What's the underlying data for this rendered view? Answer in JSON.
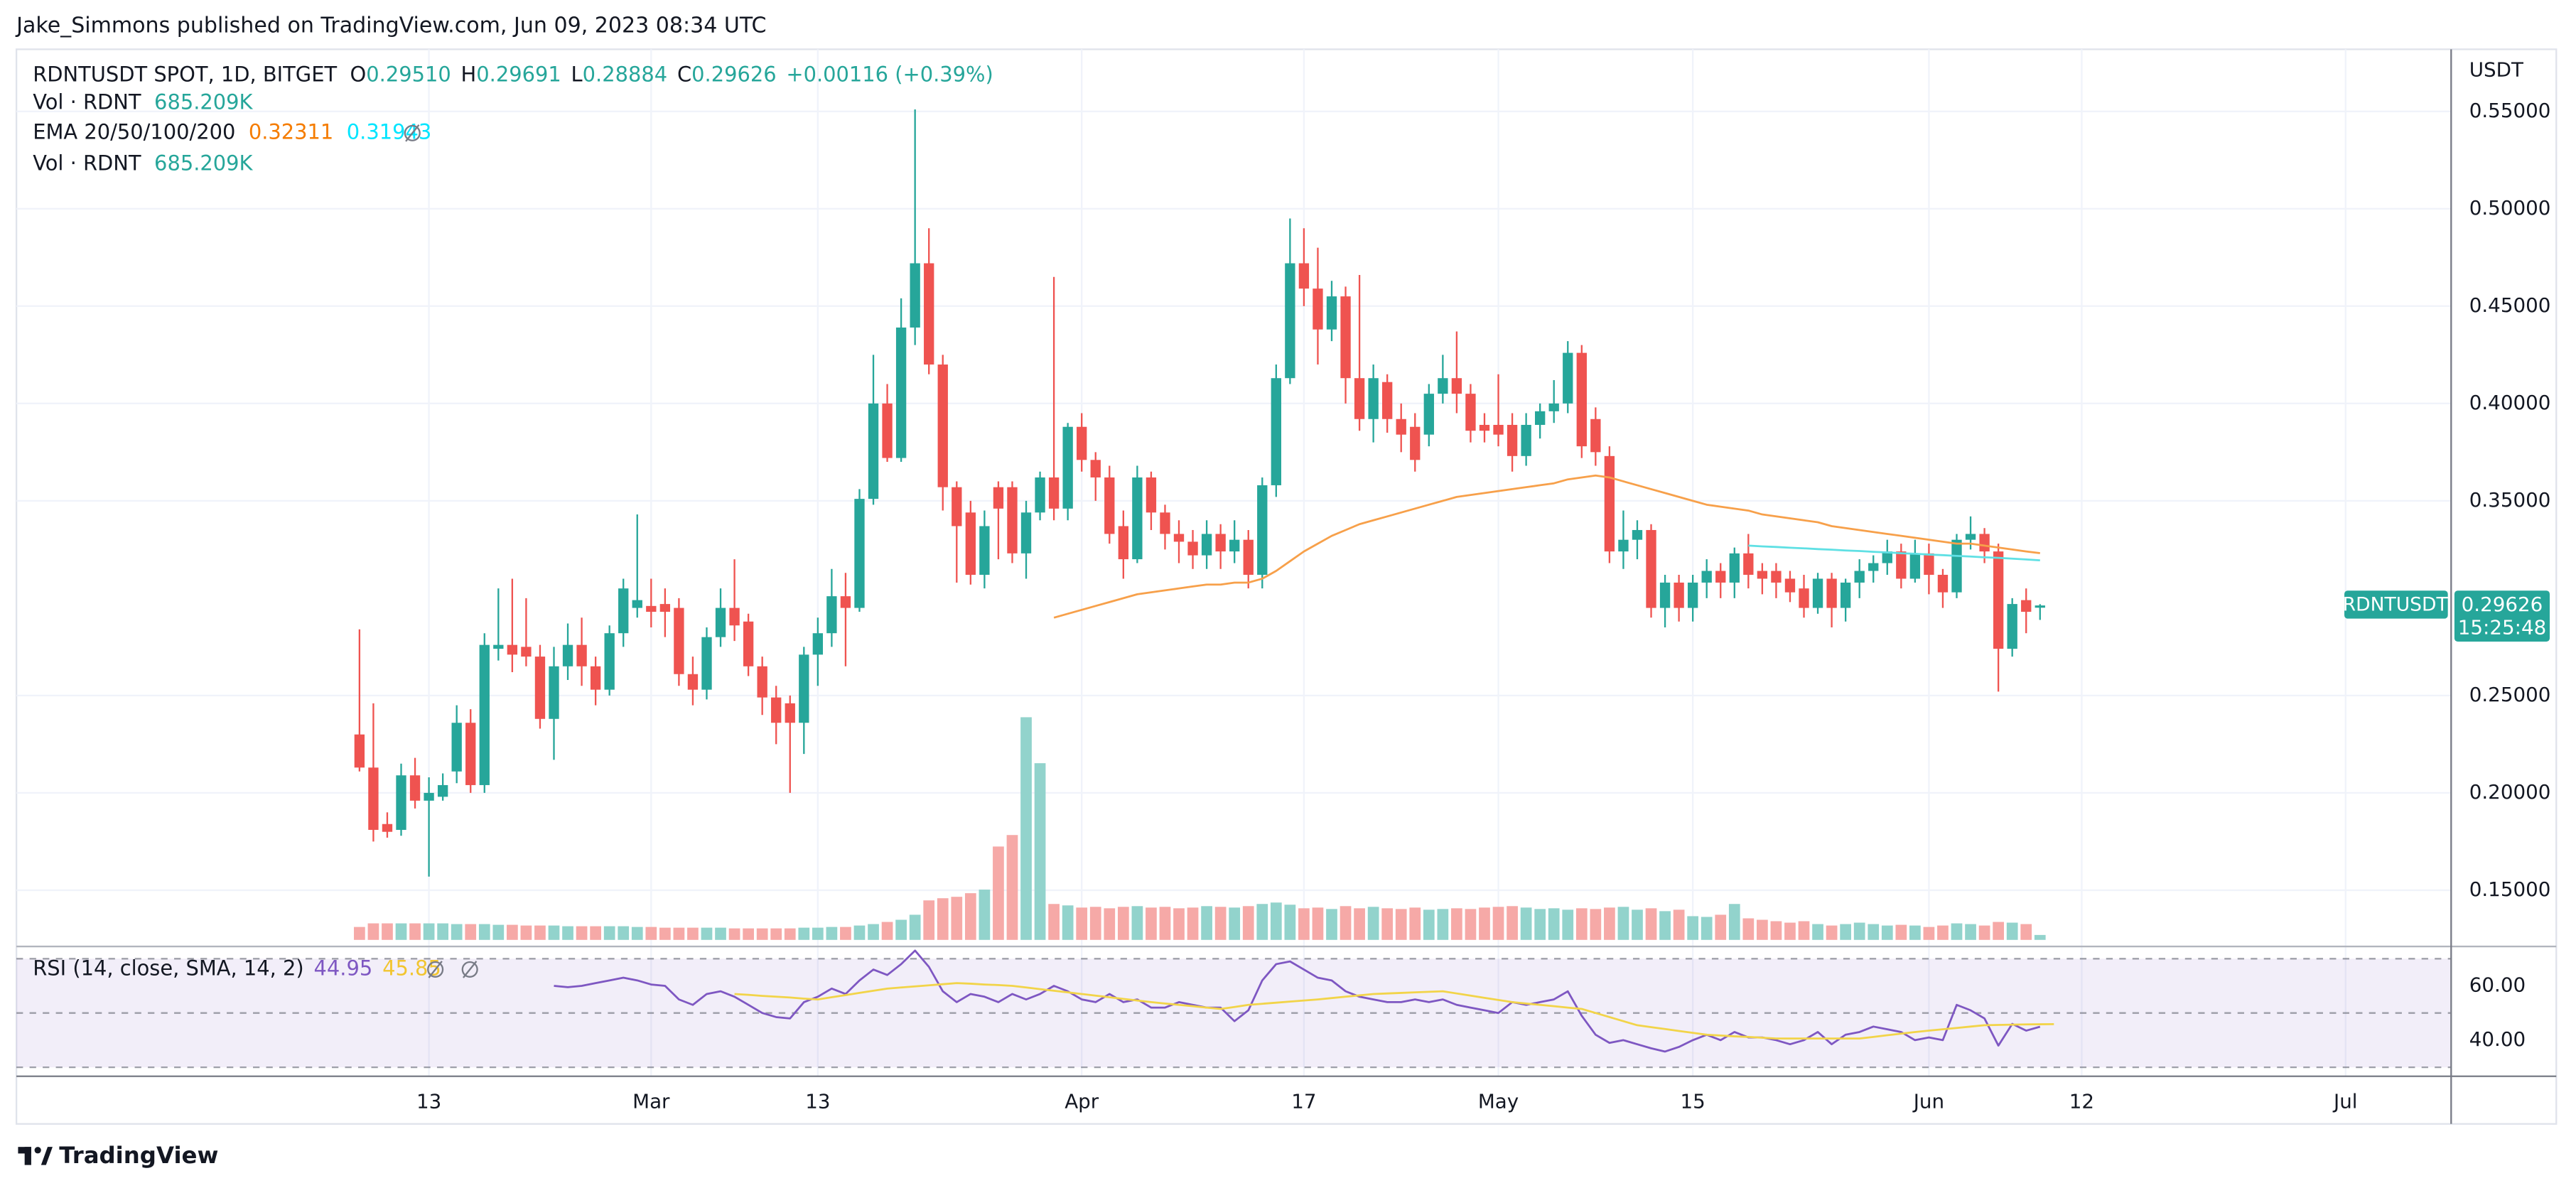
{
  "chart_data": {
    "type": "candlestick",
    "publisher": "Jake_Simmons published on TradingView.com, Jun 09, 2023 08:34 UTC",
    "title": "RDNTUSDT SPOT, 1D, BITGET",
    "legend_letters": [
      "O",
      "H",
      "L",
      "C"
    ],
    "open_label": "0.29510",
    "change": "+0.00116 (+0.39%)",
    "volume_title": "Vol · RDNT",
    "last_volume_label": "685.209K",
    "ema_title": "EMA 20/50/100/200",
    "currency": "USDT",
    "symbol": "RDNTUSDT",
    "countdown": "15:25:48",
    "brand": "TradingView",
    "grid": true,
    "colors": {
      "up": "#26a69a",
      "down": "#ef5350",
      "volume_up": "#92d3cc",
      "volume_down": "#f6a9a7"
    },
    "xlim": [
      -24.7,
      150.6
    ],
    "xticks": [
      {
        "value": 5,
        "label": "13"
      },
      {
        "value": 21,
        "label": "Mar"
      },
      {
        "value": 33,
        "label": "13"
      },
      {
        "value": 52,
        "label": "Apr"
      },
      {
        "value": 68,
        "label": "17"
      },
      {
        "value": 82,
        "label": "May"
      },
      {
        "value": 96,
        "label": "15"
      },
      {
        "value": 113,
        "label": "Jun"
      },
      {
        "value": 124,
        "label": "12"
      },
      {
        "value": 143,
        "label": "Jul"
      }
    ],
    "ylim": [
      0.1245,
      0.5819
    ],
    "yticks": [
      {
        "value": 0.15,
        "label": "0.15000"
      },
      {
        "value": 0.2,
        "label": "0.20000"
      },
      {
        "value": 0.25,
        "label": "0.25000"
      },
      {
        "value": 0.35,
        "label": "0.35000"
      },
      {
        "value": 0.4,
        "label": "0.40000"
      },
      {
        "value": 0.45,
        "label": "0.45000"
      },
      {
        "value": 0.5,
        "label": "0.50000"
      },
      {
        "value": 0.55,
        "label": "0.55000"
      }
    ],
    "y2lim": [
      0,
      124000
    ],
    "open": [
      0.23,
      0.213,
      0.184,
      0.181,
      0.209,
      0.196,
      0.198,
      0.211,
      0.236,
      0.204,
      0.274,
      0.276,
      0.275,
      0.27,
      0.238,
      0.265,
      0.276,
      0.265,
      0.253,
      0.282,
      0.295,
      0.296,
      0.297,
      0.295,
      0.261,
      0.253,
      0.28,
      0.295,
      0.288,
      0.265,
      0.249,
      0.246,
      0.236,
      0.271,
      0.282,
      0.301,
      0.295,
      0.351,
      0.4,
      0.372,
      0.439,
      0.472,
      0.42,
      0.357,
      0.344,
      0.312,
      0.357,
      0.357,
      0.323,
      0.344,
      0.362,
      0.346,
      0.388,
      0.371,
      0.362,
      0.337,
      0.32,
      0.362,
      0.344,
      0.333,
      0.329,
      0.322,
      0.333,
      0.324,
      0.33,
      0.312,
      0.358,
      0.413,
      0.472,
      0.459,
      0.438,
      0.455,
      0.413,
      0.392,
      0.411,
      0.392,
      0.388,
      0.384,
      0.405,
      0.413,
      0.405,
      0.389,
      0.389,
      0.389,
      0.373,
      0.389,
      0.396,
      0.4,
      0.426,
      0.392,
      0.373,
      0.324,
      0.33,
      0.335,
      0.295,
      0.308,
      0.295,
      0.308,
      0.314,
      0.308,
      0.323,
      0.314,
      0.314,
      0.31,
      0.305,
      0.295,
      0.31,
      0.295,
      0.308,
      0.314,
      0.318,
      0.324,
      0.31,
      0.323,
      0.312,
      0.303,
      0.33,
      0.333,
      0.324,
      0.274,
      0.299,
      0.2951
    ],
    "high": [
      0.284,
      0.246,
      0.19,
      0.215,
      0.218,
      0.208,
      0.21,
      0.245,
      0.243,
      0.282,
      0.305,
      0.31,
      0.3,
      0.276,
      0.275,
      0.287,
      0.29,
      0.27,
      0.286,
      0.31,
      0.343,
      0.31,
      0.305,
      0.3,
      0.27,
      0.285,
      0.305,
      0.32,
      0.292,
      0.27,
      0.255,
      0.25,
      0.275,
      0.29,
      0.315,
      0.313,
      0.356,
      0.425,
      0.41,
      0.454,
      0.551,
      0.49,
      0.425,
      0.36,
      0.35,
      0.345,
      0.36,
      0.36,
      0.35,
      0.365,
      0.465,
      0.39,
      0.395,
      0.375,
      0.368,
      0.345,
      0.368,
      0.365,
      0.348,
      0.34,
      0.335,
      0.34,
      0.338,
      0.34,
      0.335,
      0.362,
      0.42,
      0.495,
      0.49,
      0.48,
      0.463,
      0.46,
      0.466,
      0.42,
      0.415,
      0.4,
      0.395,
      0.41,
      0.425,
      0.437,
      0.41,
      0.395,
      0.415,
      0.395,
      0.395,
      0.4,
      0.412,
      0.432,
      0.43,
      0.398,
      0.378,
      0.345,
      0.34,
      0.338,
      0.312,
      0.312,
      0.312,
      0.32,
      0.318,
      0.326,
      0.333,
      0.318,
      0.318,
      0.314,
      0.312,
      0.313,
      0.313,
      0.31,
      0.32,
      0.322,
      0.33,
      0.328,
      0.33,
      0.328,
      0.315,
      0.333,
      0.342,
      0.336,
      0.328,
      0.3,
      0.305,
      0.29691
    ],
    "low": [
      0.211,
      0.175,
      0.177,
      0.178,
      0.192,
      0.157,
      0.196,
      0.205,
      0.2,
      0.2,
      0.268,
      0.262,
      0.265,
      0.233,
      0.217,
      0.258,
      0.255,
      0.245,
      0.25,
      0.275,
      0.29,
      0.285,
      0.28,
      0.255,
      0.245,
      0.248,
      0.275,
      0.278,
      0.26,
      0.24,
      0.225,
      0.2,
      0.22,
      0.255,
      0.275,
      0.265,
      0.293,
      0.348,
      0.37,
      0.37,
      0.43,
      0.415,
      0.345,
      0.308,
      0.307,
      0.305,
      0.32,
      0.318,
      0.31,
      0.34,
      0.34,
      0.34,
      0.365,
      0.35,
      0.328,
      0.31,
      0.318,
      0.335,
      0.325,
      0.318,
      0.315,
      0.315,
      0.315,
      0.318,
      0.305,
      0.305,
      0.352,
      0.41,
      0.45,
      0.42,
      0.432,
      0.4,
      0.386,
      0.38,
      0.385,
      0.375,
      0.365,
      0.378,
      0.4,
      0.395,
      0.38,
      0.38,
      0.378,
      0.365,
      0.368,
      0.382,
      0.39,
      0.395,
      0.372,
      0.368,
      0.318,
      0.315,
      0.32,
      0.29,
      0.285,
      0.288,
      0.288,
      0.3,
      0.3,
      0.3,
      0.305,
      0.302,
      0.3,
      0.298,
      0.29,
      0.292,
      0.285,
      0.288,
      0.3,
      0.308,
      0.312,
      0.305,
      0.308,
      0.302,
      0.295,
      0.3,
      0.325,
      0.318,
      0.252,
      0.27,
      0.282,
      0.28884
    ],
    "close": [
      0.213,
      0.181,
      0.18,
      0.209,
      0.196,
      0.2,
      0.204,
      0.236,
      0.204,
      0.276,
      0.276,
      0.271,
      0.27,
      0.238,
      0.265,
      0.276,
      0.265,
      0.253,
      0.282,
      0.305,
      0.299,
      0.293,
      0.293,
      0.261,
      0.253,
      0.28,
      0.295,
      0.286,
      0.265,
      0.249,
      0.236,
      0.236,
      0.271,
      0.282,
      0.301,
      0.295,
      0.351,
      0.4,
      0.372,
      0.439,
      0.472,
      0.42,
      0.357,
      0.337,
      0.312,
      0.337,
      0.346,
      0.323,
      0.344,
      0.362,
      0.346,
      0.388,
      0.371,
      0.362,
      0.333,
      0.32,
      0.362,
      0.344,
      0.333,
      0.329,
      0.322,
      0.333,
      0.324,
      0.33,
      0.312,
      0.358,
      0.413,
      0.472,
      0.459,
      0.438,
      0.455,
      0.413,
      0.392,
      0.413,
      0.392,
      0.384,
      0.371,
      0.405,
      0.413,
      0.405,
      0.386,
      0.386,
      0.384,
      0.373,
      0.389,
      0.396,
      0.4,
      0.426,
      0.378,
      0.375,
      0.324,
      0.33,
      0.335,
      0.295,
      0.308,
      0.295,
      0.308,
      0.314,
      0.308,
      0.323,
      0.312,
      0.31,
      0.308,
      0.303,
      0.295,
      0.31,
      0.295,
      0.308,
      0.314,
      0.318,
      0.324,
      0.31,
      0.323,
      0.312,
      0.303,
      0.33,
      0.333,
      0.324,
      0.274,
      0.297,
      0.293,
      0.29626
    ],
    "volume": [
      1800,
      2300,
      2300,
      2300,
      2300,
      2300,
      2300,
      2200,
      2200,
      2200,
      2100,
      2100,
      2000,
      2000,
      2000,
      1900,
      1900,
      1900,
      1900,
      1900,
      1800,
      1800,
      1700,
      1700,
      1700,
      1700,
      1700,
      1600,
      1600,
      1600,
      1600,
      1600,
      1700,
      1700,
      1800,
      1800,
      2000,
      2200,
      2500,
      2800,
      3500,
      5500,
      5800,
      6000,
      6500,
      7000,
      13000,
      14600,
      31000,
      24600,
      5000,
      4800,
      4500,
      4600,
      4400,
      4600,
      4700,
      4500,
      4600,
      4400,
      4500,
      4700,
      4600,
      4500,
      4700,
      5000,
      5200,
      4900,
      4400,
      4500,
      4300,
      4700,
      4400,
      4600,
      4400,
      4300,
      4500,
      4200,
      4300,
      4400,
      4300,
      4500,
      4600,
      4700,
      4500,
      4300,
      4400,
      4200,
      4400,
      4300,
      4500,
      4600,
      4200,
      4400,
      4000,
      4200,
      3300,
      3200,
      3500,
      5000,
      3000,
      2800,
      2600,
      2400,
      2600,
      2200,
      2000,
      2200,
      2400,
      2200,
      2000,
      2100,
      2000,
      1800,
      2000,
      2300,
      2200,
      2000,
      2500,
      2400,
      2200,
      685.209
    ],
    "series": [
      {
        "color": "#f7a04a",
        "values": [
          null,
          null,
          null,
          null,
          null,
          null,
          null,
          null,
          null,
          null,
          null,
          null,
          null,
          null,
          null,
          null,
          null,
          null,
          null,
          null,
          null,
          null,
          null,
          null,
          null,
          null,
          null,
          null,
          null,
          null,
          null,
          null,
          null,
          null,
          null,
          null,
          null,
          null,
          null,
          null,
          null,
          null,
          null,
          null,
          null,
          null,
          null,
          null,
          null,
          null,
          0.29,
          0.292,
          0.294,
          0.296,
          0.298,
          0.3,
          0.302,
          0.303,
          0.304,
          0.305,
          0.306,
          0.307,
          0.307,
          0.308,
          0.308,
          0.31,
          0.314,
          0.319,
          0.324,
          0.328,
          0.332,
          0.335,
          0.338,
          0.34,
          0.342,
          0.344,
          0.346,
          0.348,
          0.35,
          0.352,
          0.353,
          0.354,
          0.355,
          0.356,
          0.357,
          0.358,
          0.359,
          0.361,
          0.362,
          0.363,
          0.362,
          0.36,
          0.358,
          0.356,
          0.354,
          0.352,
          0.35,
          0.348,
          0.347,
          0.346,
          0.345,
          0.343,
          0.342,
          0.341,
          0.34,
          0.339,
          0.337,
          0.336,
          0.335,
          0.334,
          0.333,
          0.332,
          0.331,
          0.33,
          0.329,
          0.328,
          0.328,
          0.327,
          0.326,
          0.325,
          0.324,
          0.32311
        ]
      },
      {
        "color": "#5fe0e4",
        "values": [
          null,
          null,
          null,
          null,
          null,
          null,
          null,
          null,
          null,
          null,
          null,
          null,
          null,
          null,
          null,
          null,
          null,
          null,
          null,
          null,
          null,
          null,
          null,
          null,
          null,
          null,
          null,
          null,
          null,
          null,
          null,
          null,
          null,
          null,
          null,
          null,
          null,
          null,
          null,
          null,
          null,
          null,
          null,
          null,
          null,
          null,
          null,
          null,
          null,
          null,
          null,
          null,
          null,
          null,
          null,
          null,
          null,
          null,
          null,
          null,
          null,
          null,
          null,
          null,
          null,
          null,
          null,
          null,
          null,
          null,
          null,
          null,
          null,
          null,
          null,
          null,
          null,
          null,
          null,
          null,
          null,
          null,
          null,
          null,
          null,
          null,
          null,
          null,
          null,
          null,
          null,
          null,
          null,
          null,
          null,
          null,
          null,
          null,
          null,
          null,
          0.327,
          0.3266,
          0.3263,
          0.3259,
          0.3256,
          0.3252,
          0.3249,
          0.3245,
          0.3242,
          0.3238,
          0.3235,
          0.3231,
          0.3228,
          0.3224,
          0.3221,
          0.3217,
          0.3214,
          0.321,
          0.3207,
          0.3203,
          0.3199,
          0.31943
        ]
      }
    ],
    "rsi": {
      "title": "RSI (14, close, SMA, 14, 2)",
      "color": "#7e57c2",
      "ma_color": "#f2d449",
      "ylim": [
        26.7,
        73.3
      ],
      "yticks": [
        {
          "value": 60,
          "label": "60.00"
        },
        {
          "value": 40,
          "label": "40.00"
        }
      ],
      "bands": [
        70,
        50,
        30
      ],
      "values": [
        null,
        null,
        null,
        null,
        null,
        null,
        null,
        null,
        null,
        null,
        null,
        null,
        null,
        null,
        60,
        59.5,
        60,
        61,
        62,
        63,
        62,
        60.5,
        60,
        55,
        53,
        57,
        58,
        56,
        53,
        50,
        48.5,
        48,
        54,
        56,
        59,
        57,
        62,
        66,
        64,
        68,
        73,
        67,
        58,
        54,
        57,
        56,
        54,
        57,
        55,
        57,
        60,
        58,
        55,
        54,
        57,
        54,
        55,
        52,
        52,
        54,
        53,
        52,
        52,
        47,
        51,
        62,
        68,
        69,
        66,
        63,
        62,
        58,
        56,
        55,
        54,
        54,
        55,
        54,
        55,
        53,
        52,
        51,
        50,
        54,
        53,
        54,
        55,
        58,
        49,
        42,
        39,
        40,
        38.5,
        37,
        35.8,
        37.5,
        40,
        42,
        40,
        43,
        41,
        41,
        40,
        38.5,
        40,
        43,
        38.5,
        42,
        43,
        45,
        44,
        43,
        40,
        41,
        40,
        53,
        51,
        48,
        38,
        46,
        43.5,
        44.95
      ],
      "ma_values": [
        null,
        null,
        null,
        null,
        null,
        null,
        null,
        null,
        null,
        null,
        null,
        null,
        null,
        null,
        null,
        null,
        null,
        null,
        null,
        null,
        null,
        null,
        null,
        null,
        null,
        null,
        null,
        57,
        56.7,
        56.3,
        56,
        55.7,
        55.3,
        55,
        55.8,
        56.6,
        57.4,
        58.2,
        59,
        59.4,
        59.8,
        60.2,
        60.6,
        61,
        60.8,
        60.5,
        60.3,
        60,
        59.4,
        58.8,
        58.2,
        57.6,
        57,
        56.4,
        55.8,
        55.2,
        54.6,
        54,
        53.5,
        53,
        52.5,
        52,
        51.5,
        52.2,
        53,
        53.4,
        53.8,
        54.2,
        54.6,
        55,
        55.5,
        56,
        56.5,
        57,
        57.2,
        57.4,
        57.6,
        57.8,
        58,
        57.2,
        56.4,
        55.6,
        54.8,
        54,
        53.5,
        53,
        52.5,
        52,
        51.5,
        50,
        48.5,
        47,
        45.5,
        44.8,
        44.1,
        43.4,
        42.7,
        42,
        41.7,
        41.4,
        41.2,
        40.9,
        40.6,
        40.6,
        40.6,
        40.6,
        40.6,
        40.6,
        40.6,
        41.2,
        41.8,
        42.4,
        43,
        43.5,
        44,
        44.5,
        45,
        45.5,
        45.6,
        45.7,
        45.8,
        45.85,
        45.91
      ]
    }
  }
}
